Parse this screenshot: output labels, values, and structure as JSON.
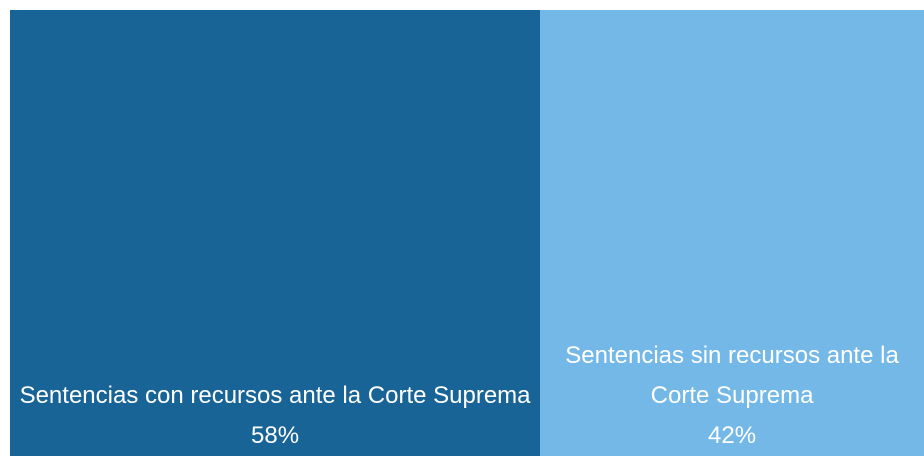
{
  "chart_data": {
    "type": "treemap",
    "categories": [
      "Sentencias con recursos ante la Corte Suprema",
      "Sentencias sin recursos ante la Corte Suprema"
    ],
    "values": [
      58,
      42
    ],
    "value_labels": [
      "58%",
      "42%"
    ],
    "colors": [
      "#186497",
      "#74b8e8"
    ]
  }
}
